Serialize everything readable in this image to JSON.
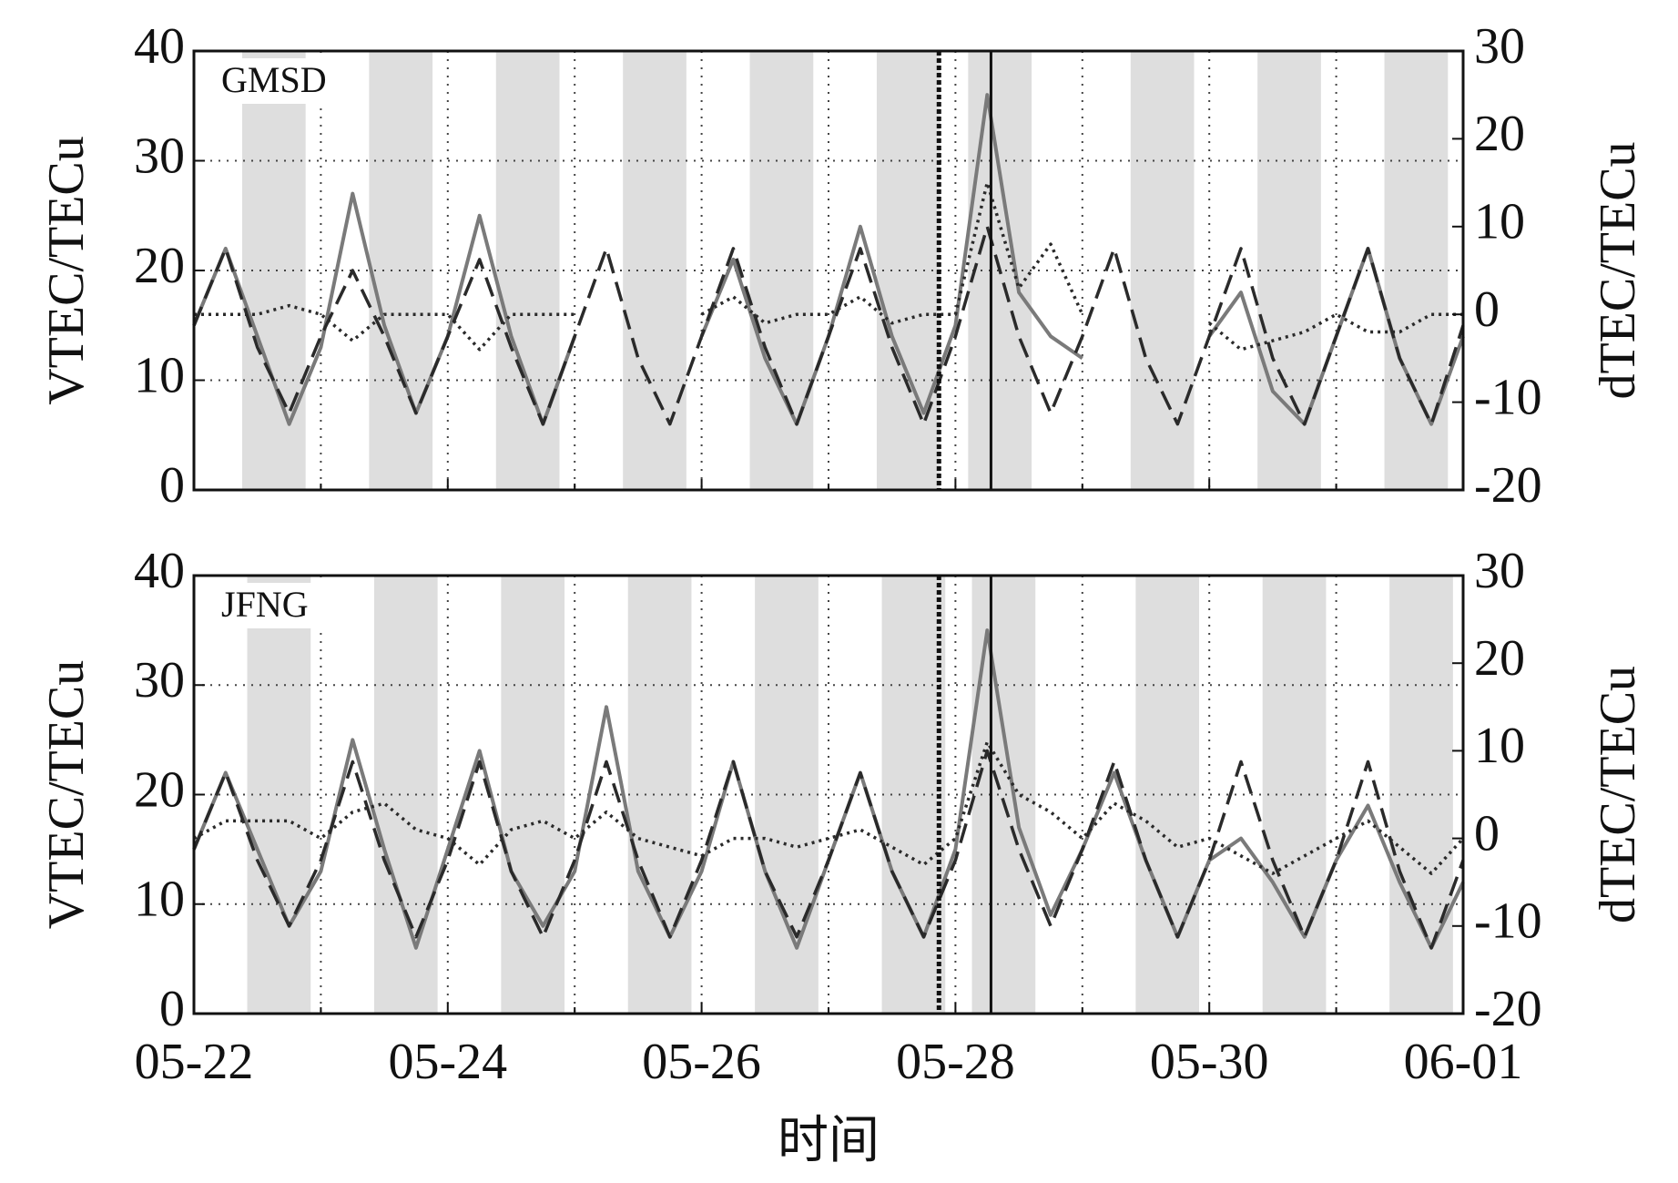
{
  "chart_data": [
    {
      "type": "line",
      "label": "GMSD",
      "ylabel": "VTEC/TECu",
      "y2label": "dTEC/TECu",
      "xlim": [
        0,
        10
      ],
      "xticks": [
        0,
        2,
        4,
        6,
        8,
        10
      ],
      "x_minor_ticks": [
        1,
        3,
        5,
        7,
        9
      ],
      "ylim": [
        0,
        40
      ],
      "yticks": [
        0,
        10,
        20,
        30,
        40
      ],
      "y2lim": [
        -20,
        30
      ],
      "y2ticks": [
        -20,
        -10,
        0,
        10,
        20,
        30
      ],
      "grid": true,
      "shaded": [
        [
          0.38,
          0.88
        ],
        [
          1.38,
          1.88
        ],
        [
          2.38,
          2.88
        ],
        [
          3.38,
          3.88
        ],
        [
          4.38,
          4.88
        ],
        [
          5.38,
          5.88
        ],
        [
          6.1,
          6.6
        ],
        [
          7.38,
          7.88
        ],
        [
          8.38,
          8.88
        ],
        [
          9.38,
          9.88
        ]
      ],
      "vlines": [
        {
          "x": 5.87,
          "style": "dotted"
        },
        {
          "x": 6.28,
          "style": "solid"
        }
      ],
      "x": [
        0,
        0.25,
        0.5,
        0.75,
        1,
        1.25,
        1.5,
        1.75,
        2,
        2.25,
        2.5,
        2.75,
        3,
        3.25,
        3.5,
        3.75,
        4,
        4.25,
        4.5,
        4.75,
        5,
        5.25,
        5.5,
        5.75,
        6,
        6.25,
        6.5,
        6.75,
        7,
        7.25,
        7.5,
        7.75,
        8,
        8.25,
        8.5,
        8.75,
        9,
        9.25,
        9.5,
        9.75,
        10
      ],
      "series": [
        {
          "color": "#7a7a7a",
          "style": "solid",
          "values": [
            15,
            22,
            14,
            6,
            13,
            27,
            15,
            7,
            14,
            25,
            14,
            6,
            14,
            null,
            null,
            null,
            14,
            21,
            12,
            6,
            14,
            24,
            14,
            7,
            15,
            36,
            18,
            14,
            12,
            null,
            null,
            null,
            14,
            18,
            9,
            6,
            14,
            22,
            12,
            6,
            14
          ]
        },
        {
          "color": "#2a2a2a",
          "style": "dashed",
          "values": [
            15,
            22,
            13,
            7,
            14,
            20,
            14,
            7,
            14,
            21,
            13,
            6,
            14,
            22,
            12,
            6,
            14,
            22,
            13,
            6,
            14,
            22,
            13,
            6,
            14,
            24,
            14,
            7,
            14,
            22,
            12,
            6,
            14,
            22,
            12,
            6,
            14,
            22,
            12,
            6,
            15
          ]
        },
        {
          "color": "#2a2a2a",
          "style": "dotted",
          "axis": "y2",
          "values": [
            0,
            0,
            0,
            1,
            0,
            -3,
            0,
            0,
            0,
            -4,
            0,
            0,
            0,
            null,
            null,
            null,
            0,
            2,
            -1,
            0,
            0,
            2,
            -1,
            0,
            0,
            15,
            3,
            8,
            0,
            null,
            null,
            null,
            -1,
            -4,
            -3,
            -2,
            0,
            -2,
            -2,
            0,
            0
          ]
        }
      ]
    },
    {
      "type": "line",
      "label": "JFNG",
      "ylabel": "VTEC/TECu",
      "y2label": "dTEC/TECu",
      "xlabel": "时间",
      "xlim": [
        0,
        10
      ],
      "xticks": [
        {
          "value": 0,
          "label": "05-22"
        },
        {
          "value": 2,
          "label": "05-24"
        },
        {
          "value": 4,
          "label": "05-26"
        },
        {
          "value": 6,
          "label": "05-28"
        },
        {
          "value": 8,
          "label": "05-30"
        },
        {
          "value": 10,
          "label": "06-01"
        }
      ],
      "x_minor_ticks": [
        1,
        3,
        5,
        7,
        9
      ],
      "ylim": [
        0,
        40
      ],
      "yticks": [
        0,
        10,
        20,
        30,
        40
      ],
      "y2lim": [
        -20,
        30
      ],
      "y2ticks": [
        -20,
        -10,
        0,
        10,
        20,
        30
      ],
      "grid": true,
      "shaded": [
        [
          0.42,
          0.92
        ],
        [
          1.42,
          1.92
        ],
        [
          2.42,
          2.92
        ],
        [
          3.42,
          3.92
        ],
        [
          4.42,
          4.92
        ],
        [
          5.42,
          5.92
        ],
        [
          6.13,
          6.63
        ],
        [
          7.42,
          7.92
        ],
        [
          8.42,
          8.92
        ],
        [
          9.42,
          9.92
        ]
      ],
      "vlines": [
        {
          "x": 5.87,
          "style": "dotted"
        },
        {
          "x": 6.28,
          "style": "solid"
        }
      ],
      "x": [
        0,
        0.25,
        0.5,
        0.75,
        1,
        1.25,
        1.5,
        1.75,
        2,
        2.25,
        2.5,
        2.75,
        3,
        3.25,
        3.5,
        3.75,
        4,
        4.25,
        4.5,
        4.75,
        5,
        5.25,
        5.5,
        5.75,
        6,
        6.25,
        6.5,
        6.75,
        7,
        7.25,
        7.5,
        7.75,
        8,
        8.25,
        8.5,
        8.75,
        9,
        9.25,
        9.5,
        9.75,
        10
      ],
      "series": [
        {
          "color": "#7a7a7a",
          "style": "solid",
          "values": [
            15,
            22,
            15,
            8,
            13,
            25,
            15,
            6,
            15,
            24,
            13,
            8,
            13,
            28,
            13,
            7,
            13,
            23,
            13,
            6,
            14,
            22,
            13,
            7,
            15,
            35,
            17,
            9,
            15,
            22,
            14,
            7,
            14,
            16,
            12,
            7,
            14,
            19,
            12,
            6,
            12
          ]
        },
        {
          "color": "#2a2a2a",
          "style": "dashed",
          "values": [
            15,
            22,
            14,
            8,
            14,
            23,
            14,
            7,
            14,
            23,
            13,
            7,
            14,
            23,
            14,
            7,
            14,
            23,
            13,
            7,
            14,
            22,
            13,
            7,
            14,
            24,
            15,
            8,
            15,
            23,
            14,
            7,
            14,
            23,
            14,
            7,
            14,
            23,
            13,
            6,
            14
          ]
        },
        {
          "color": "#2a2a2a",
          "style": "dotted",
          "axis": "y2",
          "values": [
            0,
            2,
            2,
            2,
            0,
            3,
            4,
            1,
            0,
            -3,
            1,
            2,
            0,
            3,
            0,
            -1,
            -2,
            0,
            0,
            -1,
            0,
            1,
            -1,
            -3,
            0,
            11,
            5,
            3,
            0,
            4,
            2,
            -1,
            0,
            -2,
            -4,
            -2,
            0,
            2,
            -1,
            -4,
            0
          ]
        }
      ]
    }
  ]
}
